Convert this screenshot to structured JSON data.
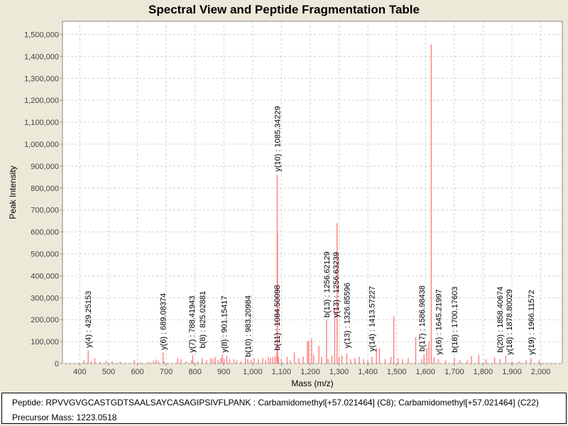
{
  "chart_data": {
    "type": "bar",
    "title": "Spectral View and Peptide Fragmentation Table",
    "xlabel": "Mass (m/z)",
    "ylabel": "Peak Intensity",
    "xlim": [
      340,
      2075
    ],
    "ylim": [
      0,
      1560000
    ],
    "xticks": [
      400,
      500,
      600,
      700,
      800,
      900,
      1000,
      1100,
      1200,
      1300,
      1400,
      1500,
      1600,
      1700,
      1800,
      1900,
      2000
    ],
    "yticks": [
      0,
      100000,
      200000,
      300000,
      400000,
      500000,
      600000,
      700000,
      800000,
      900000,
      1000000,
      1100000,
      1200000,
      1300000,
      1400000,
      1500000
    ],
    "grid": true,
    "peak_color": "#ff6666",
    "peaks": [
      [
        415,
        15000
      ],
      [
        429.25,
        60000
      ],
      [
        440,
        10000
      ],
      [
        452,
        25000
      ],
      [
        470,
        8000
      ],
      [
        492,
        12000
      ],
      [
        512,
        10000
      ],
      [
        540,
        8000
      ],
      [
        590,
        15000
      ],
      [
        610,
        5000
      ],
      [
        640,
        8000
      ],
      [
        655,
        12000
      ],
      [
        665,
        18000
      ],
      [
        672,
        10000
      ],
      [
        689.08,
        50000
      ],
      [
        692,
        10000
      ],
      [
        740,
        25000
      ],
      [
        752,
        20000
      ],
      [
        770,
        10000
      ],
      [
        788.42,
        15000
      ],
      [
        792,
        40000
      ],
      [
        810,
        10000
      ],
      [
        825.03,
        25000
      ],
      [
        840,
        15000
      ],
      [
        855,
        25000
      ],
      [
        862,
        20000
      ],
      [
        870,
        30000
      ],
      [
        880,
        15000
      ],
      [
        890,
        25000
      ],
      [
        895,
        40000
      ],
      [
        901.15,
        20000
      ],
      [
        910,
        35000
      ],
      [
        920,
        20000
      ],
      [
        935,
        20000
      ],
      [
        945,
        15000
      ],
      [
        960,
        10000
      ],
      [
        975,
        25000
      ],
      [
        983.21,
        20000
      ],
      [
        995,
        15000
      ],
      [
        1005,
        25000
      ],
      [
        1020,
        20000
      ],
      [
        1035,
        25000
      ],
      [
        1045,
        15000
      ],
      [
        1055,
        30000
      ],
      [
        1062,
        25000
      ],
      [
        1070,
        30000
      ],
      [
        1078,
        35000
      ],
      [
        1084.5,
        50000
      ],
      [
        1085.34,
        860000
      ],
      [
        1086,
        593000
      ],
      [
        1090,
        30000
      ],
      [
        1100,
        20000
      ],
      [
        1120,
        30000
      ],
      [
        1130,
        15000
      ],
      [
        1145,
        50000
      ],
      [
        1160,
        25000
      ],
      [
        1175,
        30000
      ],
      [
        1190,
        100000
      ],
      [
        1195,
        105000
      ],
      [
        1205,
        115000
      ],
      [
        1212,
        40000
      ],
      [
        1230,
        80000
      ],
      [
        1240,
        30000
      ],
      [
        1256.6,
        200000
      ],
      [
        1262,
        20000
      ],
      [
        1275,
        35000
      ],
      [
        1285,
        255000
      ],
      [
        1293,
        640000
      ],
      [
        1300,
        30000
      ],
      [
        1310,
        35000
      ],
      [
        1326.86,
        45000
      ],
      [
        1340,
        20000
      ],
      [
        1355,
        25000
      ],
      [
        1370,
        30000
      ],
      [
        1385,
        20000
      ],
      [
        1400,
        15000
      ],
      [
        1413.57,
        30000
      ],
      [
        1430,
        70000
      ],
      [
        1440,
        70000
      ],
      [
        1460,
        20000
      ],
      [
        1480,
        30000
      ],
      [
        1490,
        215000
      ],
      [
        1505,
        25000
      ],
      [
        1520,
        20000
      ],
      [
        1540,
        25000
      ],
      [
        1566,
        120000
      ],
      [
        1586.98,
        20000
      ],
      [
        1595,
        40000
      ],
      [
        1605,
        70000
      ],
      [
        1612,
        100000
      ],
      [
        1620,
        1455000
      ],
      [
        1630,
        30000
      ],
      [
        1645.22,
        20000
      ],
      [
        1670,
        15000
      ],
      [
        1700.18,
        25000
      ],
      [
        1720,
        15000
      ],
      [
        1745,
        15000
      ],
      [
        1760,
        35000
      ],
      [
        1785,
        40000
      ],
      [
        1810,
        20000
      ],
      [
        1840,
        30000
      ],
      [
        1858.41,
        20000
      ],
      [
        1878.8,
        35000
      ],
      [
        1900,
        10000
      ],
      [
        1925,
        10000
      ],
      [
        1950,
        15000
      ],
      [
        1966.12,
        25000
      ],
      [
        1995,
        15000
      ]
    ],
    "annotations": [
      {
        "text": "y(4) : 429.25153",
        "mz": 429.25,
        "intensity": 62000
      },
      {
        "text": "y(6) : 689.08374",
        "mz": 689.08,
        "intensity": 52000
      },
      {
        "text": "y(7) : 788.41943",
        "mz": 788.42,
        "intensity": 40000
      },
      {
        "text": "b(8) : 825.02881",
        "mz": 825.03,
        "intensity": 60000
      },
      {
        "text": "y(8) : 901.15417",
        "mz": 901.15,
        "intensity": 40000
      },
      {
        "text": "b(10) : 983.20984",
        "mz": 983.21,
        "intensity": 20000
      },
      {
        "text": "b(11) : 1084.50098",
        "mz": 1084.5,
        "intensity": 50000
      },
      {
        "text": "y(10) : 1085.34229",
        "mz": 1085.34,
        "intensity": 865000
      },
      {
        "text": "b(13) : 1256.62129",
        "mz": 1256.6,
        "intensity": 200000
      },
      {
        "text": "y(13) : 1256.63239",
        "mz": 1259.5,
        "intensity": 200000
      },
      {
        "text": "y(13) : 1326.85596",
        "mz": 1326.86,
        "intensity": 60000
      },
      {
        "text": "y(14) : 1413.57227",
        "mz": 1413.57,
        "intensity": 45000
      },
      {
        "text": "b(17) : 1586.98438",
        "mz": 1586.98,
        "intensity": 45000
      },
      {
        "text": "y(16) : 1645.21997",
        "mz": 1645.22,
        "intensity": 30000
      },
      {
        "text": "b(18) : 1700.17603",
        "mz": 1700.18,
        "intensity": 40000
      },
      {
        "text": "b(20) : 1858.40674",
        "mz": 1858.41,
        "intensity": 40000
      },
      {
        "text": "y(18) : 1878.80029",
        "mz": 1878.8,
        "intensity": 30000
      },
      {
        "text": "y(19) : 1966.11572",
        "mz": 1966.12,
        "intensity": 30000
      }
    ]
  },
  "info": {
    "peptide": "Peptide: RPVVGVGCASTGDTSAALSAYCASAGIPSIVFLPANK : Carbamidomethyl[+57.021464] (C8); Carbamidomethyl[+57.021464] (C22)",
    "precursor": "Precursor Mass: 1223.0518"
  }
}
